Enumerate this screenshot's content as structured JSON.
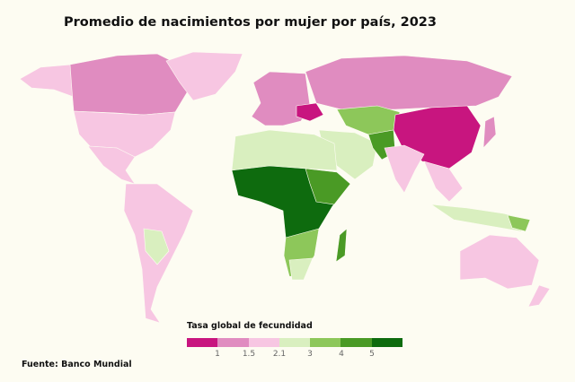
{
  "title": "Promedio de nacimientos por mujer por país, 2023",
  "legend": {
    "title": "Tasa global de fecundidad",
    "colors": [
      "#c8157f",
      "#e08cc0",
      "#f7c6e2",
      "#d9efbf",
      "#8dc75a",
      "#4a9a25",
      "#0e6b0e"
    ],
    "ticks": [
      "1",
      "1.5",
      "2.1",
      "3",
      "4",
      "5"
    ]
  },
  "source": "Fuente: Banco Mundial",
  "colors": {
    "background": "#fdfcf2"
  }
}
